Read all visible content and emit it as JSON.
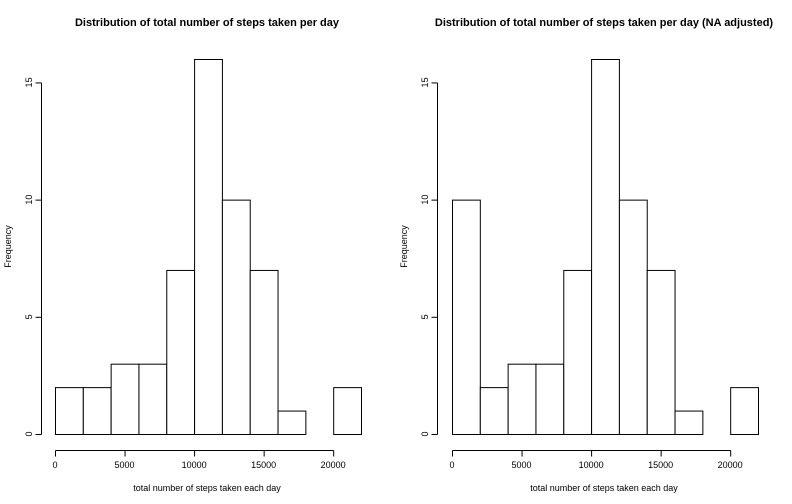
{
  "chart_data": [
    {
      "type": "bar",
      "title": "Distribution of total number of steps taken per day",
      "xlabel": "total number of steps taken each day",
      "ylabel": "Frequency",
      "bins": [
        [
          0,
          2000
        ],
        [
          2000,
          4000
        ],
        [
          4000,
          6000
        ],
        [
          6000,
          8000
        ],
        [
          8000,
          10000
        ],
        [
          10000,
          12000
        ],
        [
          12000,
          14000
        ],
        [
          14000,
          16000
        ],
        [
          16000,
          18000
        ],
        [
          18000,
          20000
        ],
        [
          20000,
          22000
        ]
      ],
      "values": [
        2,
        2,
        3,
        3,
        7,
        16,
        10,
        7,
        1,
        0,
        2
      ],
      "xticks": [
        0,
        5000,
        10000,
        15000,
        20000
      ],
      "yticks": [
        0,
        5,
        10,
        15
      ],
      "xlim": [
        0,
        22000
      ],
      "ylim": [
        0,
        16
      ],
      "grid": false
    },
    {
      "type": "bar",
      "title": "Distribution of total number of steps taken per day (NA adjusted)",
      "xlabel": "total number of steps taken each day",
      "ylabel": "Frequency",
      "bins": [
        [
          0,
          2000
        ],
        [
          2000,
          4000
        ],
        [
          4000,
          6000
        ],
        [
          6000,
          8000
        ],
        [
          8000,
          10000
        ],
        [
          10000,
          12000
        ],
        [
          12000,
          14000
        ],
        [
          14000,
          16000
        ],
        [
          16000,
          18000
        ],
        [
          18000,
          20000
        ],
        [
          20000,
          22000
        ]
      ],
      "values": [
        10,
        2,
        3,
        3,
        7,
        16,
        10,
        7,
        1,
        0,
        2
      ],
      "xticks": [
        0,
        5000,
        10000,
        15000,
        20000
      ],
      "yticks": [
        0,
        5,
        10,
        15
      ],
      "xlim": [
        0,
        22000
      ],
      "ylim": [
        0,
        16
      ],
      "grid": false
    }
  ]
}
